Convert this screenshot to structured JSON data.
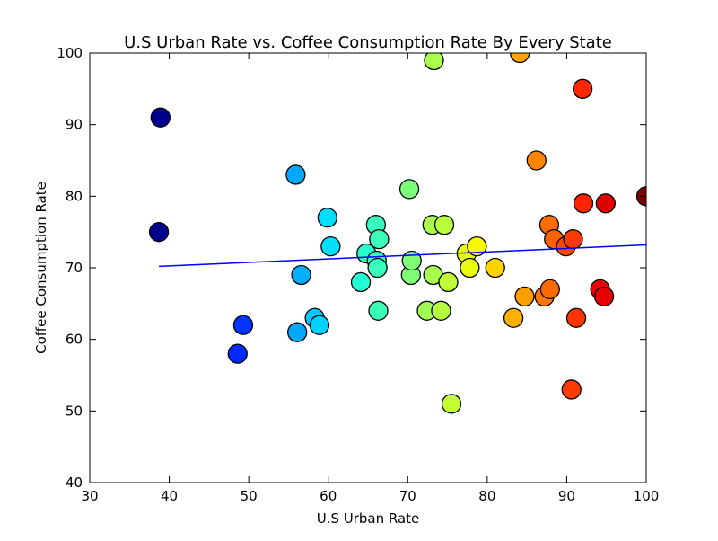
{
  "chart_data": {
    "type": "scatter",
    "title": "U.S Urban Rate vs. Coffee Consumption Rate By Every State",
    "xlabel": "U.S Urban Rate",
    "ylabel": "Coffee Consumption Rate",
    "xlim": [
      30,
      100
    ],
    "ylim": [
      40,
      100
    ],
    "xticks": [
      "30",
      "40",
      "50",
      "60",
      "70",
      "80",
      "90",
      "100"
    ],
    "yticks": [
      "40",
      "50",
      "60",
      "70",
      "80",
      "90",
      "100"
    ],
    "grid": false,
    "colormap": "jet",
    "points": [
      {
        "x": 38.7,
        "y": 75,
        "color": "#00008f"
      },
      {
        "x": 38.9,
        "y": 91,
        "color": "#00008f"
      },
      {
        "x": 48.6,
        "y": 58,
        "color": "#0028ff"
      },
      {
        "x": 49.3,
        "y": 62,
        "color": "#0034ff"
      },
      {
        "x": 55.9,
        "y": 83,
        "color": "#00a8ff"
      },
      {
        "x": 56.1,
        "y": 61,
        "color": "#00a8ff"
      },
      {
        "x": 56.6,
        "y": 69,
        "color": "#00b0ff"
      },
      {
        "x": 58.3,
        "y": 63,
        "color": "#00c8ff"
      },
      {
        "x": 58.9,
        "y": 62,
        "color": "#00d0ff"
      },
      {
        "x": 59.9,
        "y": 77,
        "color": "#00dcfe"
      },
      {
        "x": 60.3,
        "y": 73,
        "color": "#00e0fa"
      },
      {
        "x": 64.1,
        "y": 68,
        "color": "#22ffd4"
      },
      {
        "x": 64.8,
        "y": 72,
        "color": "#2affcc"
      },
      {
        "x": 66.0,
        "y": 76,
        "color": "#38ffbe"
      },
      {
        "x": 66.1,
        "y": 71,
        "color": "#38ffbe"
      },
      {
        "x": 66.2,
        "y": 70,
        "color": "#3affbc"
      },
      {
        "x": 66.3,
        "y": 64,
        "color": "#3cffba"
      },
      {
        "x": 66.4,
        "y": 74,
        "color": "#3cffba"
      },
      {
        "x": 70.2,
        "y": 81,
        "color": "#7cff7a"
      },
      {
        "x": 70.4,
        "y": 69,
        "color": "#80ff76"
      },
      {
        "x": 70.5,
        "y": 71,
        "color": "#80ff76"
      },
      {
        "x": 72.4,
        "y": 64,
        "color": "#a0ff56"
      },
      {
        "x": 73.1,
        "y": 76,
        "color": "#aaff4c"
      },
      {
        "x": 73.2,
        "y": 69,
        "color": "#aaff4c"
      },
      {
        "x": 73.3,
        "y": 99,
        "color": "#aaff4c"
      },
      {
        "x": 74.2,
        "y": 64,
        "color": "#b4ff42"
      },
      {
        "x": 74.6,
        "y": 76,
        "color": "#baff3c"
      },
      {
        "x": 75.1,
        "y": 68,
        "color": "#c0ff36"
      },
      {
        "x": 75.5,
        "y": 51,
        "color": "#c4ff32"
      },
      {
        "x": 77.4,
        "y": 72,
        "color": "#e4ff13"
      },
      {
        "x": 77.8,
        "y": 70,
        "color": "#eaff0c"
      },
      {
        "x": 78.7,
        "y": 73,
        "color": "#f6f900"
      },
      {
        "x": 81.0,
        "y": 70,
        "color": "#ffd200"
      },
      {
        "x": 83.3,
        "y": 63,
        "color": "#ffb000"
      },
      {
        "x": 84.1,
        "y": 100,
        "color": "#ffa400"
      },
      {
        "x": 84.7,
        "y": 66,
        "color": "#ff9c00"
      },
      {
        "x": 86.2,
        "y": 85,
        "color": "#ff8600"
      },
      {
        "x": 87.2,
        "y": 66,
        "color": "#ff7600"
      },
      {
        "x": 87.8,
        "y": 76,
        "color": "#ff6c00"
      },
      {
        "x": 87.9,
        "y": 67,
        "color": "#ff6a00"
      },
      {
        "x": 88.4,
        "y": 74,
        "color": "#ff6200"
      },
      {
        "x": 89.9,
        "y": 73,
        "color": "#ff4800"
      },
      {
        "x": 90.6,
        "y": 53,
        "color": "#ff3c00"
      },
      {
        "x": 90.8,
        "y": 74,
        "color": "#ff3a00"
      },
      {
        "x": 91.2,
        "y": 63,
        "color": "#ff3400"
      },
      {
        "x": 92.0,
        "y": 95,
        "color": "#ff2600"
      },
      {
        "x": 92.1,
        "y": 79,
        "color": "#ff2400"
      },
      {
        "x": 94.2,
        "y": 67,
        "color": "#ec0000"
      },
      {
        "x": 94.7,
        "y": 66,
        "color": "#e40000"
      },
      {
        "x": 94.9,
        "y": 79,
        "color": "#e00000"
      },
      {
        "x": 100.0,
        "y": 80,
        "color": "#800000"
      }
    ],
    "trendline": {
      "x": [
        38.7,
        100
      ],
      "y": [
        70.2,
        73.2
      ],
      "color": "#0000ff"
    }
  }
}
